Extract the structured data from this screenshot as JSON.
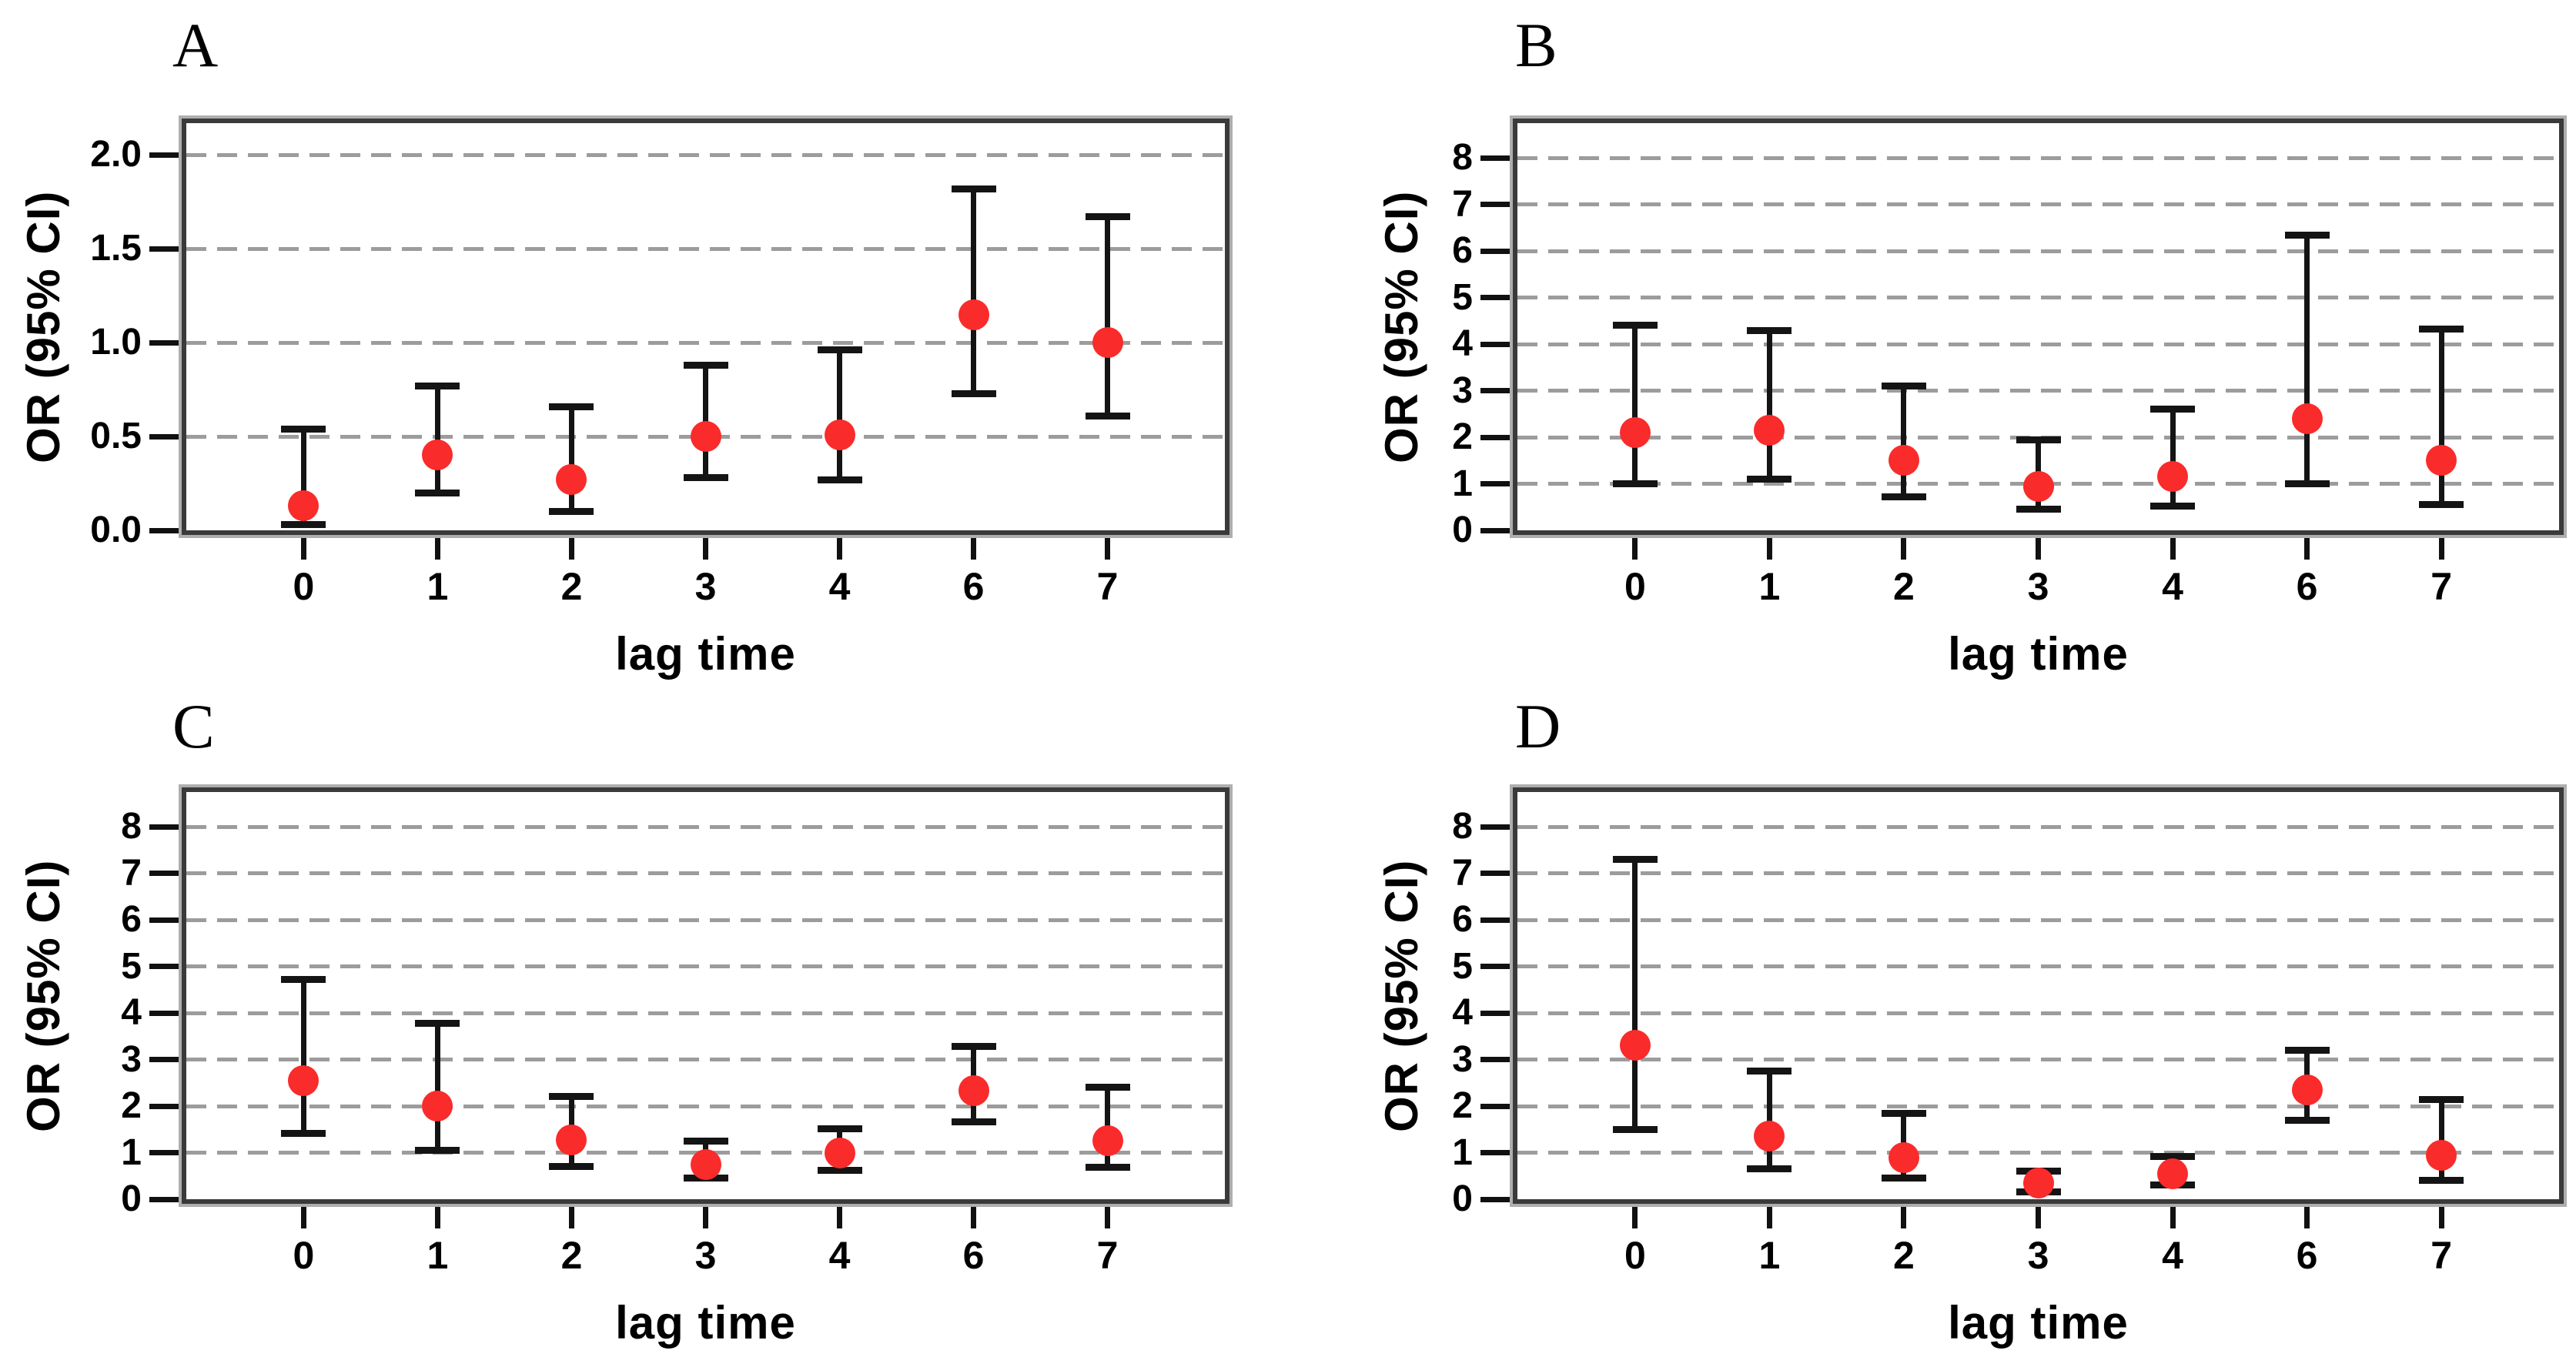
{
  "figure": {
    "background": "#ffffff",
    "marker_color": "#fa2b2b",
    "error_bar_color": "#141414",
    "frame_color": "#3a3a3a",
    "grid_color": "#9c9c9c",
    "y_axis_label": "OR (95% CI)",
    "x_axis_label": "lag time"
  },
  "chart_data": [
    {
      "panel_label": "A",
      "type": "scatter",
      "xlabel": "lag time",
      "ylabel": "OR (95% CI)",
      "legend": "none",
      "grid": "horizontal-dashed",
      "x_categories": [
        "0",
        "1",
        "2",
        "3",
        "4",
        "6",
        "7"
      ],
      "y_ticks": [
        0,
        0.5,
        1,
        1.5,
        2
      ],
      "y_tick_labels": [
        "0.0",
        "0.5",
        "1.0",
        "1.5",
        "2.0"
      ],
      "ylim": [
        0,
        2.17
      ],
      "series": [
        {
          "name": "odds ratio with 95% confidence interval",
          "or": [
            0.13,
            0.4,
            0.27,
            0.5,
            0.51,
            1.15,
            1.0
          ],
          "ci_low": [
            0.03,
            0.2,
            0.1,
            0.28,
            0.27,
            0.73,
            0.61
          ],
          "ci_high": [
            0.54,
            0.77,
            0.66,
            0.88,
            0.96,
            1.82,
            1.67
          ]
        }
      ]
    },
    {
      "panel_label": "B",
      "type": "scatter",
      "xlabel": "lag time",
      "ylabel": "OR (95% CI)",
      "legend": "none",
      "grid": "horizontal-dashed",
      "x_categories": [
        "0",
        "1",
        "2",
        "3",
        "4",
        "6",
        "7"
      ],
      "y_ticks": [
        0,
        1,
        2,
        3,
        4,
        5,
        6,
        7,
        8
      ],
      "y_tick_labels": [
        "0",
        "1",
        "2",
        "3",
        "4",
        "5",
        "6",
        "7",
        "8"
      ],
      "ylim": [
        0,
        8.75
      ],
      "series": [
        {
          "name": "odds ratio with 95% confidence interval",
          "or": [
            2.1,
            2.15,
            1.5,
            0.95,
            1.15,
            2.4,
            1.5
          ],
          "ci_low": [
            1.0,
            1.1,
            0.72,
            0.45,
            0.52,
            1.0,
            0.56
          ],
          "ci_high": [
            4.4,
            4.3,
            3.1,
            1.95,
            2.6,
            6.35,
            4.33
          ]
        }
      ]
    },
    {
      "panel_label": "C",
      "type": "scatter",
      "xlabel": "lag time",
      "ylabel": "OR (95% CI)",
      "legend": "none",
      "grid": "horizontal-dashed",
      "x_categories": [
        "0",
        "1",
        "2",
        "3",
        "4",
        "6",
        "7"
      ],
      "y_ticks": [
        0,
        1,
        2,
        3,
        4,
        5,
        6,
        7,
        8
      ],
      "y_tick_labels": [
        "0",
        "1",
        "2",
        "3",
        "4",
        "5",
        "6",
        "7",
        "8"
      ],
      "ylim": [
        0,
        8.75
      ],
      "series": [
        {
          "name": "odds ratio with 95% confidence interval",
          "or": [
            2.55,
            2.0,
            1.27,
            0.75,
            1.0,
            2.33,
            1.25
          ],
          "ci_low": [
            1.42,
            1.05,
            0.7,
            0.45,
            0.62,
            1.66,
            0.68
          ],
          "ci_high": [
            4.72,
            3.78,
            2.2,
            1.25,
            1.52,
            3.28,
            2.4
          ]
        }
      ]
    },
    {
      "panel_label": "D",
      "type": "scatter",
      "xlabel": "lag time",
      "ylabel": "OR (95% CI)",
      "legend": "none",
      "grid": "horizontal-dashed",
      "x_categories": [
        "0",
        "1",
        "2",
        "3",
        "4",
        "6",
        "7"
      ],
      "y_ticks": [
        0,
        1,
        2,
        3,
        4,
        5,
        6,
        7,
        8
      ],
      "y_tick_labels": [
        "0",
        "1",
        "2",
        "3",
        "4",
        "5",
        "6",
        "7",
        "8"
      ],
      "ylim": [
        0,
        8.75
      ],
      "series": [
        {
          "name": "odds ratio with 95% confidence interval",
          "or": [
            3.3,
            1.35,
            0.9,
            0.35,
            0.55,
            2.35,
            0.95
          ],
          "ci_low": [
            1.5,
            0.65,
            0.45,
            0.15,
            0.3,
            1.7,
            0.4
          ],
          "ci_high": [
            7.3,
            2.75,
            1.85,
            0.6,
            0.92,
            3.2,
            2.15
          ]
        }
      ]
    }
  ]
}
